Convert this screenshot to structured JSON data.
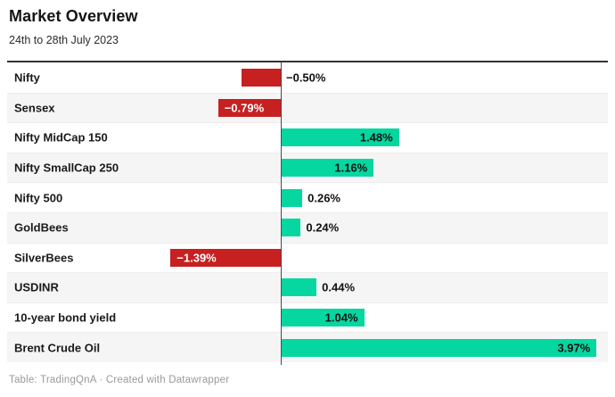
{
  "header": {
    "title": "Market Overview",
    "subtitle": "24th to 28th July 2023"
  },
  "footer": {
    "credit": "Table: TradingQnA · Created with Datawrapper"
  },
  "colors": {
    "positive": "#06d6a0",
    "negative": "#c72020",
    "axis_line": "#4a4a4a",
    "row_stripe": "#f5f5f5",
    "top_rule": "#333333"
  },
  "chart_data": {
    "type": "bar",
    "orientation": "horizontal",
    "title": "Market Overview",
    "subtitle": "24th to 28th July 2023",
    "unit": "%",
    "xlim": [
      -1.5,
      4.1
    ],
    "grid": false,
    "legend": false,
    "zero_baseline": true,
    "categories": [
      "Nifty",
      "Sensex",
      "Nifty MidCap 150",
      "Nifty SmallCap 250",
      "Nifty 500",
      "GoldBees",
      "SilverBees",
      "USDINR",
      "10-year bond yield",
      "Brent Crude Oil"
    ],
    "values": [
      -0.5,
      -0.79,
      1.48,
      1.16,
      0.26,
      0.24,
      -1.39,
      0.44,
      1.04,
      3.97
    ],
    "value_labels": [
      "−0.50%",
      "−0.79%",
      "1.48%",
      "1.16%",
      "0.26%",
      "0.24%",
      "−1.39%",
      "0.44%",
      "1.04%",
      "3.97%"
    ]
  }
}
